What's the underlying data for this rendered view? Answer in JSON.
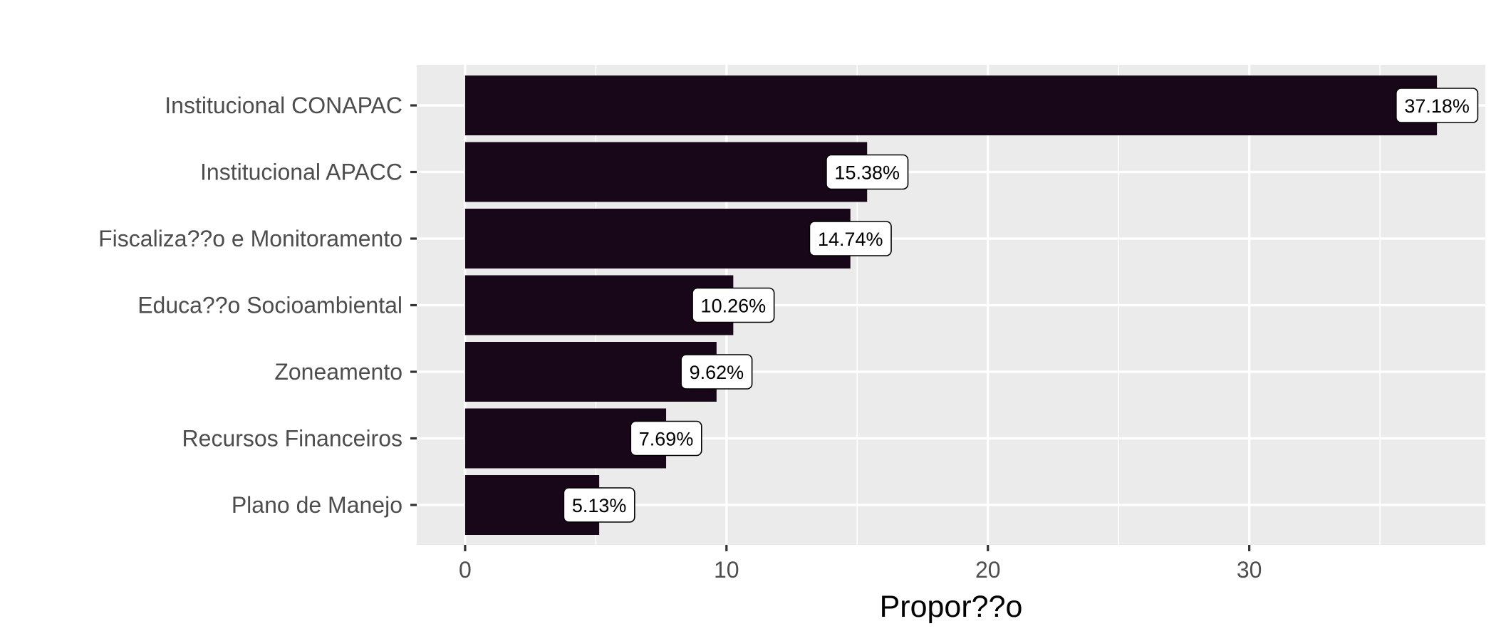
{
  "chart_data": {
    "type": "bar",
    "orientation": "horizontal",
    "categories": [
      "Institucional CONAPAC",
      "Institucional APACC",
      "Fiscaliza??o e Monitoramento",
      "Educa??o Socioambiental",
      "Zoneamento",
      "Recursos Financeiros",
      "Plano de Manejo"
    ],
    "values": [
      37.18,
      15.38,
      14.74,
      10.26,
      9.62,
      7.69,
      5.13
    ],
    "data_labels": [
      "37.18%",
      "15.38%",
      "14.74%",
      "10.26%",
      "9.62%",
      "7.69%",
      "5.13%"
    ],
    "title": "",
    "xlabel": "Propor??o",
    "ylabel": "",
    "xlim": [
      -1.85,
      39.03
    ],
    "x_ticks": [
      0,
      10,
      20,
      30
    ],
    "x_tick_labels": [
      "0",
      "10",
      "20",
      "30"
    ],
    "grid": true,
    "legend": "none",
    "colors": {
      "bar": "#180619",
      "panel_background": "#ebebeb",
      "grid_line": "#ffffff",
      "label_box": "#ffffff",
      "text": "#4d4d4d"
    }
  }
}
